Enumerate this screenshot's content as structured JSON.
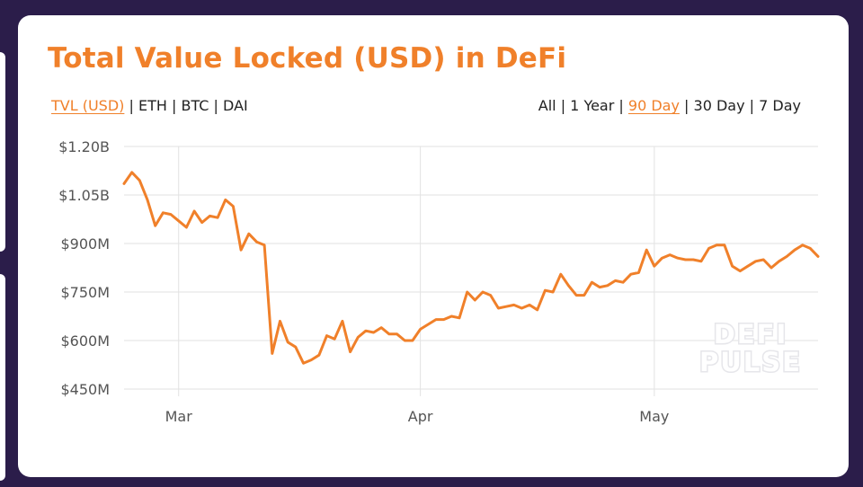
{
  "header": {
    "title": "Total Value Locked (USD) in DeFi"
  },
  "currency_tabs": [
    {
      "label": "TVL (USD)",
      "active": true
    },
    {
      "label": "ETH",
      "active": false
    },
    {
      "label": "BTC",
      "active": false
    },
    {
      "label": "DAI",
      "active": false
    }
  ],
  "range_tabs": [
    {
      "label": "All",
      "active": false
    },
    {
      "label": "1 Year",
      "active": false
    },
    {
      "label": "90 Day",
      "active": true
    },
    {
      "label": "30 Day",
      "active": false
    },
    {
      "label": "7 Day",
      "active": false
    }
  ],
  "watermark": {
    "line1": "DEFI",
    "line2": "PULSE"
  },
  "colors": {
    "accent": "#f0802a",
    "grid": "#e2e2e2",
    "tick_text": "#555555",
    "watermark": "#e6e6ea"
  },
  "chart_data": {
    "type": "line",
    "title": "Total Value Locked (USD) in DeFi",
    "xlabel": "",
    "ylabel": "",
    "ylim": [
      450,
      1200
    ],
    "y_ticks": [
      {
        "value": 1200,
        "label": "$1.20B"
      },
      {
        "value": 1050,
        "label": "$1.05B"
      },
      {
        "value": 900,
        "label": "$900M"
      },
      {
        "value": 750,
        "label": "$750M"
      },
      {
        "value": 600,
        "label": "$600M"
      },
      {
        "value": 450,
        "label": "$450M"
      }
    ],
    "x_ticks": [
      {
        "date": "2020-03-01",
        "label": "Mar"
      },
      {
        "date": "2020-04-01",
        "label": "Apr"
      },
      {
        "date": "2020-05-01",
        "label": "May"
      }
    ],
    "xlim": [
      "2020-02-23",
      "2020-05-22"
    ],
    "grid": true,
    "legend": "none",
    "series": [
      {
        "color": "#f0802a",
        "points": [
          [
            "2020-02-23",
            1085
          ],
          [
            "2020-02-24",
            1120
          ],
          [
            "2020-02-25",
            1095
          ],
          [
            "2020-02-26",
            1035
          ],
          [
            "2020-02-27",
            955
          ],
          [
            "2020-02-28",
            995
          ],
          [
            "2020-02-29",
            990
          ],
          [
            "2020-03-01",
            970
          ],
          [
            "2020-03-02",
            950
          ],
          [
            "2020-03-03",
            1000
          ],
          [
            "2020-03-04",
            965
          ],
          [
            "2020-03-05",
            985
          ],
          [
            "2020-03-06",
            980
          ],
          [
            "2020-03-07",
            1035
          ],
          [
            "2020-03-08",
            1015
          ],
          [
            "2020-03-09",
            880
          ],
          [
            "2020-03-10",
            930
          ],
          [
            "2020-03-11",
            905
          ],
          [
            "2020-03-12",
            895
          ],
          [
            "2020-03-13",
            560
          ],
          [
            "2020-03-14",
            660
          ],
          [
            "2020-03-15",
            595
          ],
          [
            "2020-03-16",
            580
          ],
          [
            "2020-03-17",
            530
          ],
          [
            "2020-03-18",
            540
          ],
          [
            "2020-03-19",
            555
          ],
          [
            "2020-03-20",
            615
          ],
          [
            "2020-03-21",
            605
          ],
          [
            "2020-03-22",
            660
          ],
          [
            "2020-03-23",
            565
          ],
          [
            "2020-03-24",
            610
          ],
          [
            "2020-03-25",
            630
          ],
          [
            "2020-03-26",
            625
          ],
          [
            "2020-03-27",
            640
          ],
          [
            "2020-03-28",
            620
          ],
          [
            "2020-03-29",
            620
          ],
          [
            "2020-03-30",
            600
          ],
          [
            "2020-03-31",
            600
          ],
          [
            "2020-04-01",
            635
          ],
          [
            "2020-04-02",
            650
          ],
          [
            "2020-04-03",
            665
          ],
          [
            "2020-04-04",
            665
          ],
          [
            "2020-04-05",
            675
          ],
          [
            "2020-04-06",
            670
          ],
          [
            "2020-04-07",
            750
          ],
          [
            "2020-04-08",
            725
          ],
          [
            "2020-04-09",
            750
          ],
          [
            "2020-04-10",
            740
          ],
          [
            "2020-04-11",
            700
          ],
          [
            "2020-04-12",
            705
          ],
          [
            "2020-04-13",
            710
          ],
          [
            "2020-04-14",
            700
          ],
          [
            "2020-04-15",
            710
          ],
          [
            "2020-04-16",
            695
          ],
          [
            "2020-04-17",
            755
          ],
          [
            "2020-04-18",
            750
          ],
          [
            "2020-04-19",
            805
          ],
          [
            "2020-04-20",
            770
          ],
          [
            "2020-04-21",
            740
          ],
          [
            "2020-04-22",
            740
          ],
          [
            "2020-04-23",
            780
          ],
          [
            "2020-04-24",
            765
          ],
          [
            "2020-04-25",
            770
          ],
          [
            "2020-04-26",
            785
          ],
          [
            "2020-04-27",
            780
          ],
          [
            "2020-04-28",
            805
          ],
          [
            "2020-04-29",
            810
          ],
          [
            "2020-04-30",
            880
          ],
          [
            "2020-05-01",
            830
          ],
          [
            "2020-05-02",
            855
          ],
          [
            "2020-05-03",
            865
          ],
          [
            "2020-05-04",
            855
          ],
          [
            "2020-05-05",
            850
          ],
          [
            "2020-05-06",
            850
          ],
          [
            "2020-05-07",
            845
          ],
          [
            "2020-05-08",
            885
          ],
          [
            "2020-05-09",
            895
          ],
          [
            "2020-05-10",
            895
          ],
          [
            "2020-05-11",
            830
          ],
          [
            "2020-05-12",
            815
          ],
          [
            "2020-05-13",
            830
          ],
          [
            "2020-05-14",
            845
          ],
          [
            "2020-05-15",
            850
          ],
          [
            "2020-05-16",
            825
          ],
          [
            "2020-05-17",
            845
          ],
          [
            "2020-05-18",
            860
          ],
          [
            "2020-05-19",
            880
          ],
          [
            "2020-05-20",
            895
          ],
          [
            "2020-05-21",
            885
          ],
          [
            "2020-05-22",
            860
          ]
        ]
      }
    ]
  }
}
